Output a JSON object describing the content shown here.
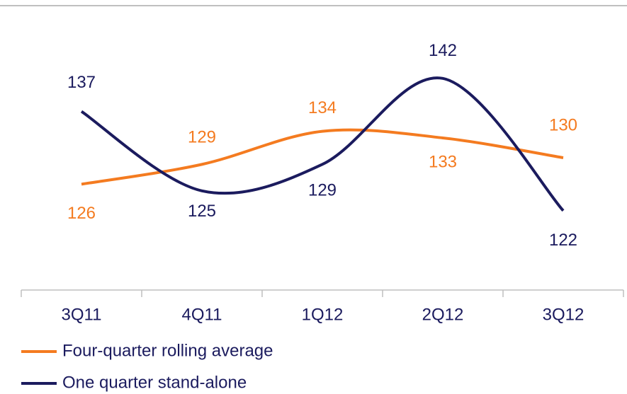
{
  "chart_data": {
    "type": "line",
    "categories": [
      "3Q11",
      "4Q11",
      "1Q12",
      "2Q12",
      "3Q12"
    ],
    "series": [
      {
        "name": "Four-quarter rolling average",
        "color": "#f47b20",
        "values": [
          126,
          129,
          134,
          133,
          130
        ]
      },
      {
        "name": "One quarter stand-alone",
        "color": "#1b1b5e",
        "values": [
          137,
          125,
          129,
          142,
          122
        ]
      }
    ],
    "ylim": [
      110,
      153
    ],
    "smooth": true
  }
}
